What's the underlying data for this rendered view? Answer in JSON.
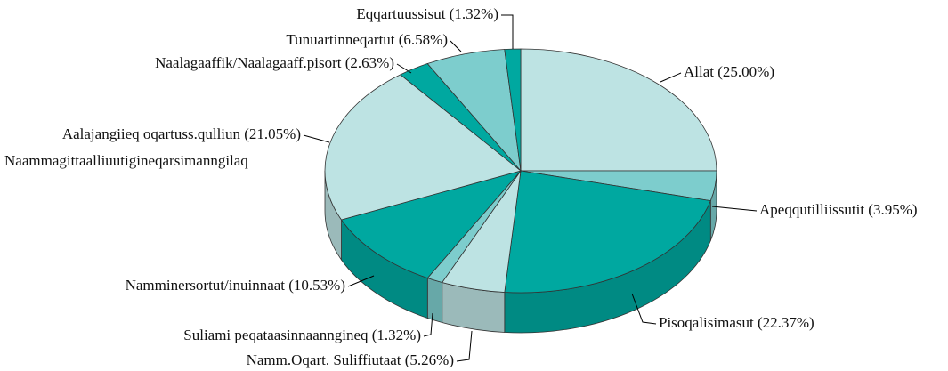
{
  "chart_data": {
    "type": "pie3d",
    "categories": [
      "Allat (25.00%)",
      "Apeqqutilliissutit (3.95%)",
      "Pisoqalisimasut (22.37%)",
      "Namm.Oqart. Suliffiutaat  (5.26%)",
      "Suliami peqataasinnaanngineq (1.32%)",
      "Namminersortut/inuinnaat (10.53%)",
      "Aalajangiieq oqartuss.qulliun (21.05%)",
      "Naalagaaffik/Naalagaaff.pisort  (2.63%)",
      "Tunuartinneqartut (6.58%)",
      "Eqqartuussisut (1.32%)"
    ],
    "values": [
      25.0,
      3.95,
      22.37,
      5.26,
      1.32,
      10.53,
      21.05,
      2.63,
      6.58,
      1.32
    ],
    "colors": [
      "#bde3e3",
      "#7dcdcd",
      "#00a8a0",
      "#bde3e3",
      "#7dcdcd",
      "#00a8a0",
      "#bde3e3",
      "#00a8a0",
      "#7dcdcd",
      "#00a8a0"
    ],
    "annotations": [
      "Naammagittaalliuutigineqarsimanngilaq"
    ]
  }
}
